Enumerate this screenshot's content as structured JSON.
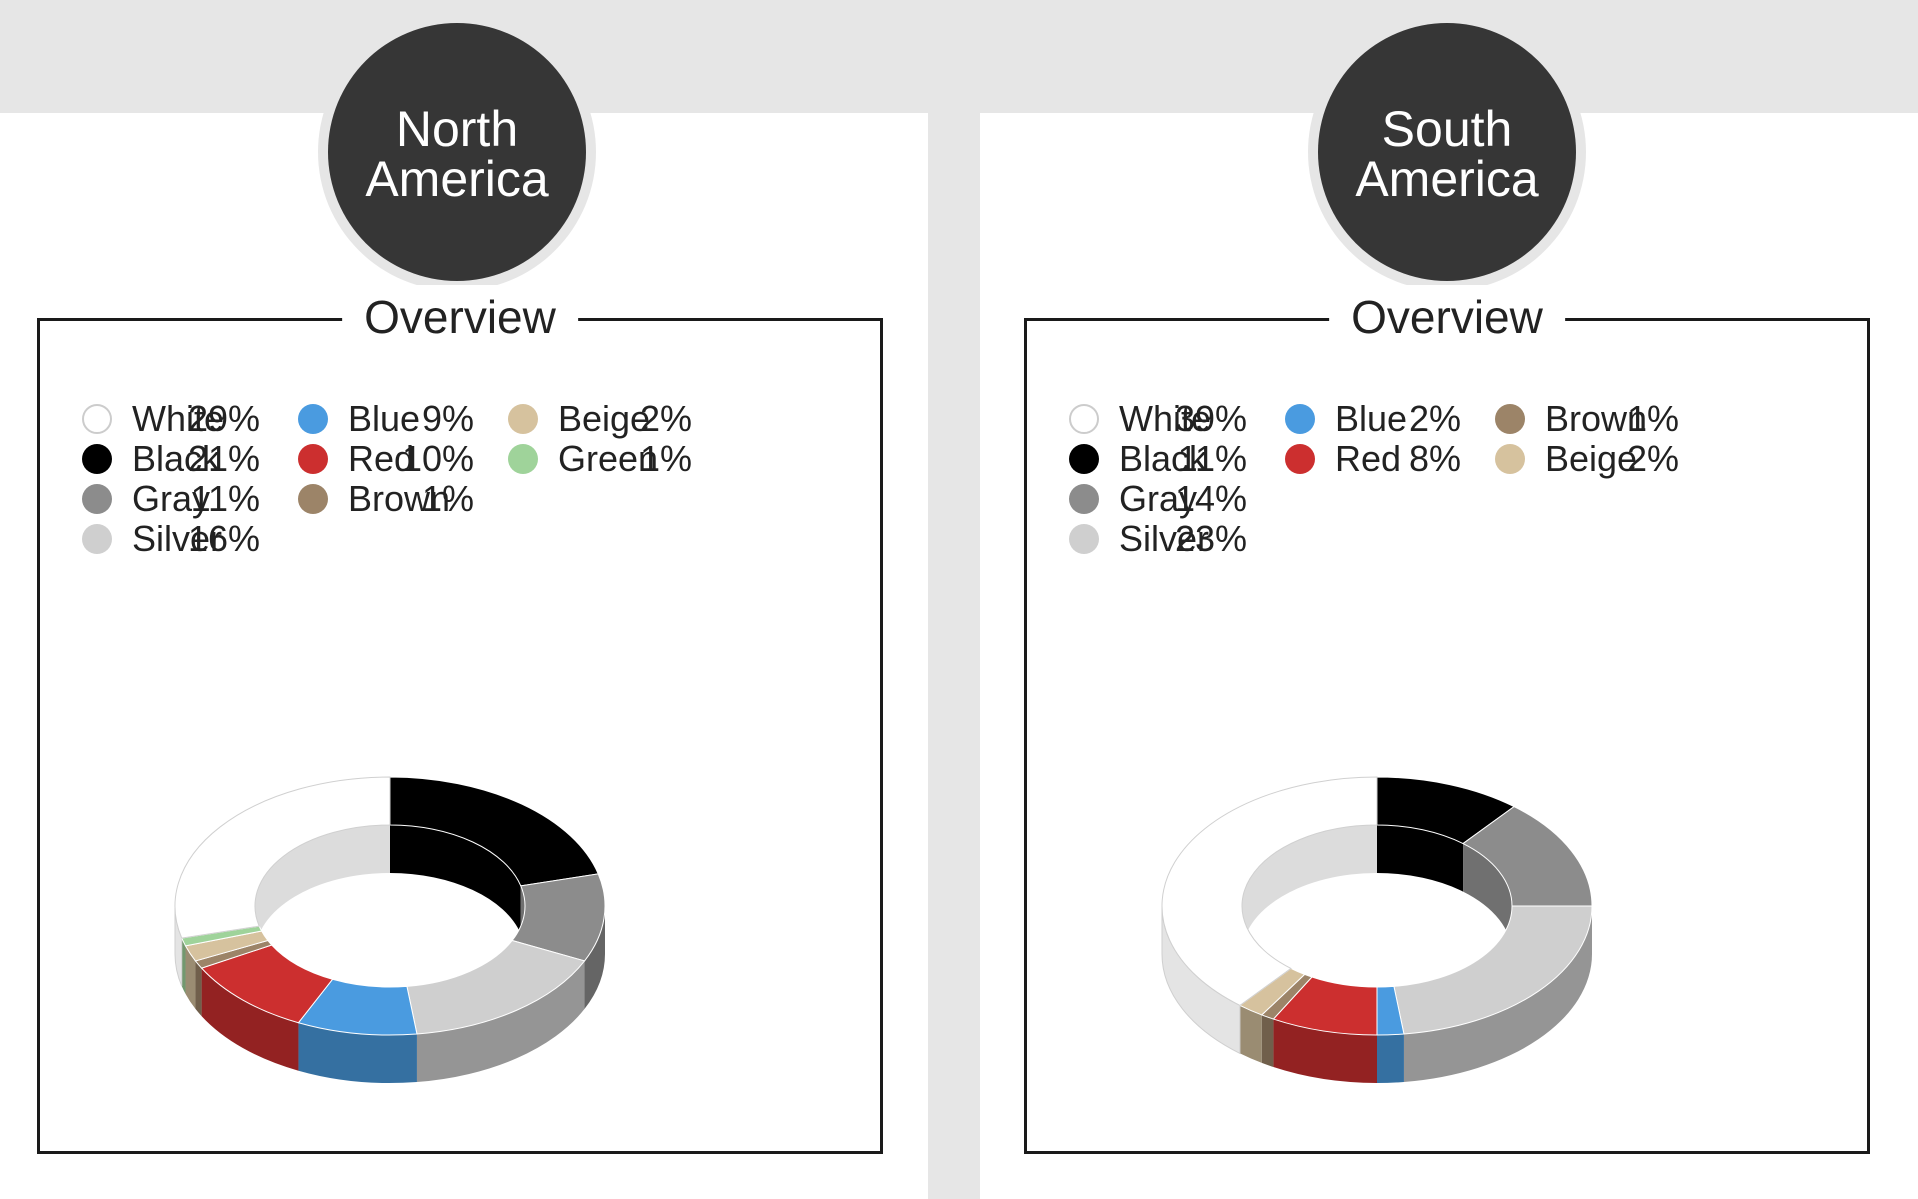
{
  "chart_data": [
    {
      "type": "pie",
      "title": "North America",
      "subtitle": "Overview",
      "unit": "%",
      "categories": [
        "White",
        "Black",
        "Gray",
        "Silver",
        "Blue",
        "Red",
        "Brown",
        "Beige",
        "Green"
      ],
      "values": [
        29,
        21,
        11,
        16,
        9,
        10,
        1,
        2,
        1
      ],
      "labels": [
        "29%",
        "21%",
        "11%",
        "16%",
        "9%",
        "10%",
        "1%",
        "2%",
        "1%"
      ],
      "colors": [
        "#ffffff",
        "#000000",
        "#8c8c8c",
        "#cfcfcf",
        "#4a9be0",
        "#cc2f2f",
        "#9c8468",
        "#d6c29e",
        "#9fd39a"
      ],
      "legend_columns": [
        [
          0,
          1,
          2,
          3
        ],
        [
          4,
          5,
          6
        ],
        [
          7,
          8
        ]
      ],
      "slice_order": [
        1,
        2,
        3,
        4,
        5,
        6,
        7,
        8,
        0
      ],
      "legend": "top"
    },
    {
      "type": "pie",
      "title": "South America",
      "subtitle": "Overview",
      "unit": "%",
      "categories": [
        "White",
        "Black",
        "Gray",
        "Silver",
        "Blue",
        "Red",
        "Brown",
        "Beige"
      ],
      "values": [
        39,
        11,
        14,
        23,
        2,
        8,
        1,
        2
      ],
      "labels": [
        "39%",
        "11%",
        "14%",
        "23%",
        "2%",
        "8%",
        "1%",
        "2%"
      ],
      "colors": [
        "#ffffff",
        "#000000",
        "#8c8c8c",
        "#cfcfcf",
        "#4a9be0",
        "#cc2f2f",
        "#9c8468",
        "#d6c29e"
      ],
      "legend_columns": [
        [
          0,
          1,
          2,
          3
        ],
        [
          4,
          5
        ],
        [
          6,
          7
        ]
      ],
      "slice_order": [
        1,
        2,
        3,
        4,
        5,
        6,
        7,
        0
      ],
      "legend": "top"
    }
  ],
  "panels": [
    {
      "badge_line1": "North",
      "badge_line2": "America",
      "overview": "Overview"
    },
    {
      "badge_line1": "South",
      "badge_line2": "America",
      "overview": "Overview"
    }
  ]
}
